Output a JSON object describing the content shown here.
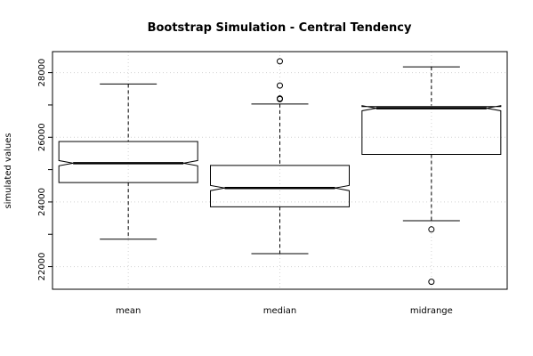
{
  "chart_data": {
    "type": "boxplot",
    "title": "Bootstrap Simulation - Central Tendency",
    "xlabel": "",
    "ylabel": "simulated values",
    "ylim": [
      21300,
      28650
    ],
    "yticks": [
      22000,
      24000,
      26000,
      28000
    ],
    "grid": true,
    "notched": true,
    "categories": [
      "mean",
      "median",
      "midrange"
    ],
    "boxes": [
      {
        "name": "mean",
        "whisker_low": 22850,
        "q1": 24600,
        "median": 25200,
        "q3": 25870,
        "whisker_high": 27650,
        "notch_low": 25120,
        "notch_high": 25280,
        "outliers": []
      },
      {
        "name": "median",
        "whisker_low": 22400,
        "q1": 23850,
        "median": 24430,
        "q3": 25130,
        "whisker_high": 27030,
        "notch_low": 24350,
        "notch_high": 24510,
        "outliers": [
          27180,
          27200,
          27600,
          28350
        ]
      },
      {
        "name": "midrange",
        "whisker_low": 23420,
        "q1": 25470,
        "median": 26900,
        "q3": 26950,
        "whisker_high": 28180,
        "notch_low": 26820,
        "notch_high": 26980,
        "outliers": [
          23150,
          21530
        ]
      }
    ]
  }
}
